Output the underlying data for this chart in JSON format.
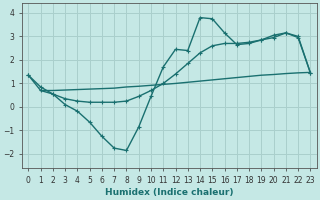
{
  "xlabel": "Humidex (Indice chaleur)",
  "background_color": "#c5e8e5",
  "grid_color": "#aacfcc",
  "line_color": "#1a7070",
  "xlim": [
    -0.5,
    23.5
  ],
  "ylim": [
    -2.6,
    4.4
  ],
  "xticks": [
    0,
    1,
    2,
    3,
    4,
    5,
    6,
    7,
    8,
    9,
    10,
    11,
    12,
    13,
    14,
    15,
    16,
    17,
    18,
    19,
    20,
    21,
    22,
    23
  ],
  "yticks": [
    -2,
    -1,
    0,
    1,
    2,
    3,
    4
  ],
  "line1_x": [
    0,
    1,
    2,
    3,
    4,
    5,
    6,
    7,
    8,
    9,
    10,
    11,
    12,
    13,
    14,
    15,
    16,
    17,
    18,
    19,
    20,
    21,
    22,
    23
  ],
  "line1_y": [
    1.35,
    0.85,
    0.55,
    0.1,
    -0.18,
    -0.65,
    -1.25,
    -1.75,
    -1.85,
    -0.85,
    0.45,
    1.7,
    2.45,
    2.4,
    3.8,
    3.75,
    3.15,
    2.65,
    2.7,
    2.85,
    2.95,
    3.15,
    2.95,
    1.45
  ],
  "line2_x": [
    0,
    1,
    2,
    3,
    4,
    5,
    6,
    7,
    8,
    9,
    10,
    11,
    12,
    13,
    14,
    15,
    16,
    17,
    18,
    19,
    20,
    21,
    22,
    23
  ],
  "line2_y": [
    1.35,
    0.7,
    0.55,
    0.35,
    0.25,
    0.2,
    0.2,
    0.2,
    0.25,
    0.45,
    0.7,
    1.0,
    1.4,
    1.85,
    2.3,
    2.6,
    2.7,
    2.7,
    2.75,
    2.85,
    3.05,
    3.15,
    3.0,
    1.45
  ],
  "line3_x": [
    1,
    2,
    3,
    4,
    5,
    6,
    7,
    8,
    9,
    10,
    11,
    12,
    13,
    14,
    15,
    16,
    17,
    18,
    19,
    20,
    21,
    22,
    23
  ],
  "line3_y": [
    0.7,
    0.7,
    0.72,
    0.74,
    0.76,
    0.78,
    0.8,
    0.85,
    0.88,
    0.92,
    0.96,
    1.0,
    1.05,
    1.1,
    1.15,
    1.2,
    1.25,
    1.3,
    1.35,
    1.38,
    1.42,
    1.45,
    1.47
  ]
}
